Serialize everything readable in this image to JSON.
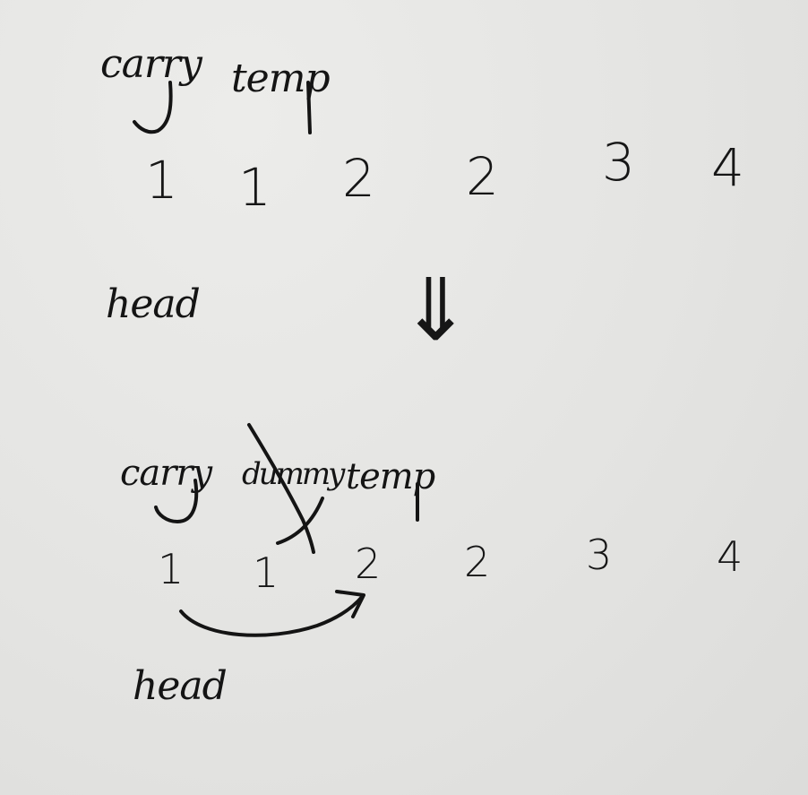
{
  "top": {
    "pointer_left": "carry",
    "pointer_right": "temp",
    "list_values": [
      "1",
      "1",
      "2",
      "2",
      "3",
      "4"
    ],
    "head_label": "head"
  },
  "transition_arrow": "⇓",
  "bottom": {
    "pointer_carry": "carry",
    "pointer_dummy": "dummy",
    "pointer_temp": "temp",
    "list_values": [
      "1",
      "1",
      "2",
      "2",
      "3",
      "4"
    ],
    "head_label": "head"
  },
  "ink_color": "#141414",
  "paper_color": "#e6e6e4"
}
